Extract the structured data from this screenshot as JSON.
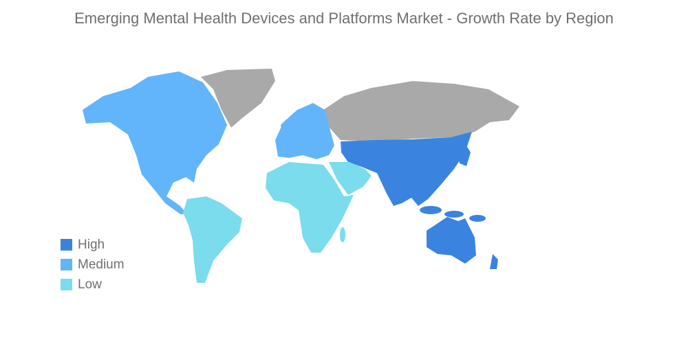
{
  "title": "Emerging Mental Health Devices and Platforms Market - Growth Rate by Region",
  "legend": [
    {
      "label": "High",
      "color": "#3a84e0"
    },
    {
      "label": "Medium",
      "color": "#62b5fb"
    },
    {
      "label": "Low",
      "color": "#7adcec"
    }
  ],
  "no_data_color": "#a9a9a9",
  "regions": {
    "North America": "Medium",
    "Europe": "Medium",
    "Asia-Pacific": "High",
    "South America": "Low",
    "Middle East and Africa": "Low"
  }
}
